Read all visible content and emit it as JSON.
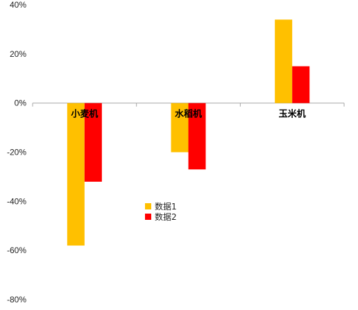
{
  "chart_data": {
    "type": "bar",
    "categories": [
      "小麦机",
      "水稻机",
      "玉米机"
    ],
    "series": [
      {
        "name": "数据1",
        "color": "#FFC000",
        "values": [
          -58,
          -20,
          34
        ]
      },
      {
        "name": "数据2",
        "color": "#FF0000",
        "values": [
          -32,
          -27,
          15
        ]
      }
    ],
    "yticks": [
      "40%",
      "20%",
      "0%",
      "-20%",
      "-40%",
      "-60%",
      "-80%"
    ],
    "ylim": [
      -80,
      40
    ],
    "y_unit": "%",
    "grid": false,
    "legend": {
      "placement": "center-left-inside"
    },
    "axis_color": "#A6A6A6"
  }
}
